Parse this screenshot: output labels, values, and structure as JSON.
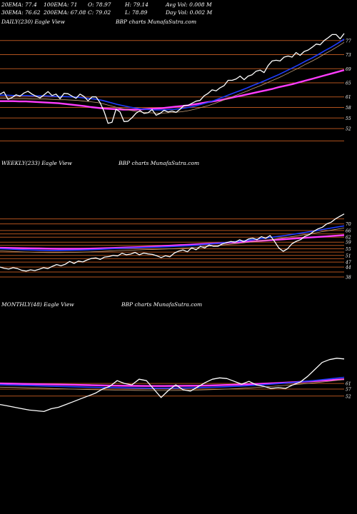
{
  "stats": {
    "row1": [
      "20EMA: 77.4",
      "100EMA: 71",
      "O: 78.97",
      "H: 79.14",
      "Avg Vol: 0.008  M"
    ],
    "row2": [
      "30EMA: 76.62",
      "200EMA: 67.08",
      "C: 79.02",
      "L: 78.89",
      "Day Vol: 0.002  M"
    ]
  },
  "colors": {
    "background": "#000000",
    "price": "#ffffff",
    "ema_fast": "#1e3cff",
    "ema_slow": "#ff3cff",
    "ema_mid": "#c8a078",
    "level": "#b0521e"
  },
  "chart_data": [
    {
      "type": "line",
      "title_left": "DAILY(230) Eagle  View",
      "title_right": "BBP charts MunafaSutra.com",
      "y_ticks": [
        "77",
        "73",
        "69",
        "65",
        "61",
        "58",
        "55",
        "52"
      ],
      "y_range": [
        50,
        80
      ],
      "levels": [
        77,
        73,
        69,
        65,
        61,
        58,
        55,
        52,
        48.5
      ],
      "series": [
        {
          "role": "price",
          "values": [
            61.8,
            62.4,
            60.3,
            60.8,
            61.6,
            61.2,
            62.1,
            62.6,
            61.8,
            61.2,
            60.7,
            61.6,
            62.5,
            61.4,
            61.8,
            60.5,
            62.0,
            61.9,
            61.2,
            60.6,
            61.8,
            61.1,
            59.9,
            61.0,
            61.0,
            59.4,
            56.9,
            53.5,
            53.8,
            57.5,
            56.7,
            54.0,
            54.1,
            55.1,
            56.4,
            57.1,
            56.3,
            56.5,
            57.4,
            55.8,
            56.3,
            57.2,
            56.7,
            57.0,
            56.6,
            57.5,
            58.6,
            58.6,
            59.2,
            59.8,
            60.0,
            61.3,
            62.0,
            63.0,
            62.7,
            63.6,
            64.2,
            65.7,
            65.7,
            66.1,
            66.9,
            65.9,
            66.9,
            67.3,
            68.3,
            68.6,
            67.9,
            69.9,
            71.2,
            71.4,
            71.2,
            72.3,
            72.6,
            72.3,
            73.6,
            72.8,
            73.9,
            74.3,
            75.1,
            76.0,
            75.8,
            77.0,
            77.8,
            78.7,
            78.7,
            77.5,
            79.0
          ]
        },
        {
          "role": "ema_fast",
          "values": [
            61.5,
            61.5,
            61.4,
            61.4,
            61.4,
            61.3,
            61.3,
            61.3,
            61.2,
            61.1,
            61.1,
            61.0,
            60.9,
            60.7,
            60.5,
            60.3,
            59.9,
            59.4,
            58.9,
            58.5,
            58.1,
            57.8,
            57.5,
            57.4,
            57.3,
            57.3,
            57.4,
            57.5,
            57.7,
            58.0,
            58.4,
            58.9,
            59.4,
            60.0,
            60.7,
            61.4,
            62.1,
            62.8,
            63.5,
            64.3,
            65.0,
            65.8,
            66.6,
            67.4,
            68.3,
            69.2,
            70.1,
            71.1,
            72.0,
            73.0,
            74.1,
            75.1,
            76.2,
            77.4
          ]
        },
        {
          "role": "ema_slow",
          "values": [
            59.8,
            59.8,
            59.8,
            59.7,
            59.7,
            59.6,
            59.5,
            59.4,
            59.3,
            59.2,
            59.0,
            58.8,
            58.6,
            58.4,
            58.1,
            57.9,
            57.7,
            57.6,
            57.5,
            57.4,
            57.4,
            57.4,
            57.5,
            57.6,
            57.7,
            57.8,
            58.0,
            58.2,
            58.4,
            58.6,
            58.9,
            59.2,
            59.5,
            59.8,
            60.1,
            60.5,
            60.9,
            61.3,
            61.7,
            62.1,
            62.5,
            62.9,
            63.3,
            63.8,
            64.2,
            64.6,
            65.1,
            65.6,
            66.1,
            66.6,
            67.1,
            67.6,
            68.1,
            68.6
          ]
        }
      ]
    },
    {
      "type": "line",
      "title_left": "WEEKLY(233) Eagle  View",
      "title_right": "BBP charts MunafaSutra.com",
      "y_ticks": [
        "70",
        "66",
        "62",
        "59",
        "55",
        "51",
        "47",
        "44",
        "38"
      ],
      "y_range": [
        35,
        78
      ],
      "levels": [
        73,
        70,
        66,
        64,
        62,
        59,
        57,
        55,
        53,
        51,
        49,
        47,
        44,
        41,
        38
      ],
      "series": [
        {
          "role": "price",
          "values": [
            44.0,
            43.2,
            42.8,
            43.6,
            43.1,
            42.0,
            41.6,
            42.3,
            41.9,
            42.7,
            43.6,
            43.1,
            44.4,
            45.5,
            44.8,
            45.7,
            47.4,
            46.2,
            47.6,
            47.1,
            48.3,
            49.2,
            49.5,
            48.6,
            50.0,
            50.3,
            51.0,
            50.7,
            52.3,
            51.4,
            51.8,
            52.8,
            51.4,
            52.4,
            51.9,
            51.6,
            50.8,
            49.7,
            50.8,
            50.2,
            52.4,
            53.6,
            54.3,
            53.2,
            55.6,
            54.4,
            56.4,
            55.5,
            57.3,
            56.5,
            56.5,
            57.9,
            58.7,
            59.4,
            59.0,
            60.4,
            59.3,
            60.9,
            61.4,
            60.5,
            62.3,
            61.3,
            63.0,
            59.5,
            55.5,
            53.5,
            55.0,
            58.0,
            59.5,
            60.5,
            62.5,
            63.5,
            65.5,
            67.0,
            68.0,
            70.0,
            71.0,
            73.0,
            74.5,
            76.0
          ]
        },
        {
          "role": "ema_fast",
          "values": [
            55.0,
            54.8,
            54.5,
            54.3,
            54.1,
            54.0,
            54.0,
            54.1,
            54.2,
            54.4,
            54.6,
            54.9,
            55.2,
            55.4,
            55.6,
            55.8,
            56.0,
            56.2,
            56.5,
            56.8,
            57.2,
            57.7,
            58.2,
            58.8,
            59.4,
            60.0,
            60.7,
            61.4,
            62.2,
            63.0,
            63.9,
            64.8,
            65.8,
            66.8,
            67.8,
            68.8
          ]
        },
        {
          "role": "ema_slow",
          "values": [
            55.6,
            55.5,
            55.4,
            55.3,
            55.2,
            55.1,
            55.0,
            55.0,
            55.0,
            55.1,
            55.2,
            55.4,
            55.6,
            55.8,
            56.0,
            56.2,
            56.5,
            56.8,
            57.1,
            57.4,
            57.7,
            58.0,
            58.3,
            58.6,
            58.9,
            59.2,
            59.6,
            60.0,
            60.4,
            60.8,
            61.2,
            61.6,
            62.0,
            62.4,
            62.8,
            63.2
          ]
        }
      ]
    },
    {
      "type": "line",
      "title_left": "MONTHLY(48) Eagle  View",
      "title_right": "BBP charts MunafaSutra.com",
      "y_ticks": [
        "61",
        "57",
        "52"
      ],
      "y_range": [
        30,
        85
      ],
      "levels": [
        61,
        57,
        52
      ],
      "series": [
        {
          "role": "price",
          "values": [
            46.0,
            45.0,
            44.0,
            43.0,
            42.0,
            41.5,
            41.0,
            43.0,
            44.0,
            46.0,
            48.0,
            50.0,
            52.0,
            54.0,
            57.0,
            59.0,
            63.0,
            61.0,
            60.0,
            64.0,
            63.0,
            57.0,
            51.0,
            56.0,
            60.0,
            56.5,
            55.5,
            58.5,
            61.5,
            64.0,
            65.0,
            64.5,
            62.5,
            60.5,
            62.5,
            60.0,
            59.0,
            57.5,
            58.0,
            57.5,
            60.0,
            62.0,
            66.0,
            71.0,
            76.0,
            78.0,
            79.0,
            78.5
          ]
        },
        {
          "role": "ema_fast",
          "values": [
            60.0,
            59.8,
            59.5,
            59.2,
            58.9,
            58.6,
            58.3,
            58.1,
            57.9,
            57.7,
            57.6,
            57.6,
            57.7,
            57.9,
            58.2,
            58.6,
            59.1,
            59.7,
            60.4,
            61.2,
            62.1,
            63.1,
            64.2,
            65.4
          ]
        },
        {
          "role": "ema_slow",
          "values": [
            61.0,
            60.8,
            60.6,
            60.4,
            60.2,
            60.0,
            59.8,
            59.6,
            59.4,
            59.3,
            59.2,
            59.2,
            59.3,
            59.4,
            59.6,
            59.9,
            60.2,
            60.6,
            61.0,
            61.5,
            62.1,
            62.7,
            63.3,
            64.0
          ]
        }
      ]
    }
  ]
}
